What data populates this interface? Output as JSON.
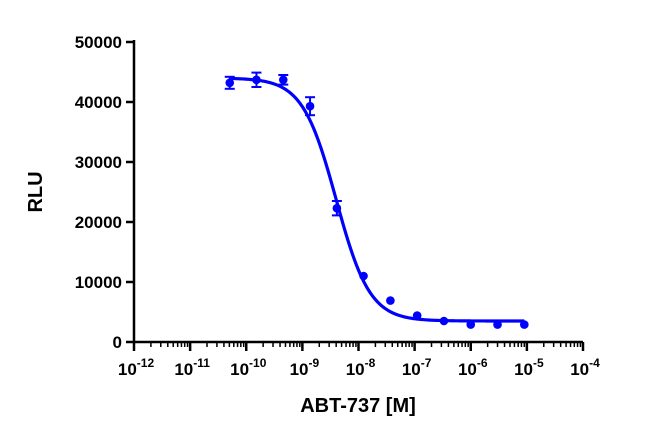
{
  "chart_data": {
    "type": "scatter",
    "title": "",
    "xlabel": "ABT-737 [M]",
    "ylabel": "RLU",
    "x_scale": "log",
    "xlim": [
      1e-12,
      0.0001
    ],
    "ylim": [
      0,
      50000
    ],
    "grid": false,
    "x_ticks": [
      {
        "value": 1e-12,
        "base": "10",
        "exp": "-12"
      },
      {
        "value": 1e-11,
        "base": "10",
        "exp": "-11"
      },
      {
        "value": 1e-10,
        "base": "10",
        "exp": "-10"
      },
      {
        "value": 1e-09,
        "base": "10",
        "exp": "-9"
      },
      {
        "value": 1e-08,
        "base": "10",
        "exp": "-8"
      },
      {
        "value": 1e-07,
        "base": "10",
        "exp": "-7"
      },
      {
        "value": 1e-06,
        "base": "10",
        "exp": "-6"
      },
      {
        "value": 1e-05,
        "base": "10",
        "exp": "-5"
      },
      {
        "value": 0.0001,
        "base": "10",
        "exp": "-4"
      }
    ],
    "y_ticks": [
      {
        "value": 0,
        "label": "0"
      },
      {
        "value": 10000,
        "label": "10000"
      },
      {
        "value": 20000,
        "label": "20000"
      },
      {
        "value": 30000,
        "label": "30000"
      },
      {
        "value": 40000,
        "label": "40000"
      },
      {
        "value": 50000,
        "label": "50000"
      }
    ],
    "series": [
      {
        "color": "#0000ff",
        "points": [
          {
            "x": 5.08e-11,
            "y": 43200,
            "err": 1000
          },
          {
            "x": 1.52e-10,
            "y": 43700,
            "err": 1200
          },
          {
            "x": 4.57e-10,
            "y": 43700,
            "err": 800
          },
          {
            "x": 1.37e-09,
            "y": 39300,
            "err": 1500
          },
          {
            "x": 4.12e-09,
            "y": 22300,
            "err": 1200
          },
          {
            "x": 1.23e-08,
            "y": 11000,
            "err": 0
          },
          {
            "x": 3.7e-08,
            "y": 6900,
            "err": 0
          },
          {
            "x": 1.11e-07,
            "y": 4400,
            "err": 0
          },
          {
            "x": 3.33e-07,
            "y": 3500,
            "err": 0
          },
          {
            "x": 1e-06,
            "y": 2900,
            "err": 0
          },
          {
            "x": 3e-06,
            "y": 2900,
            "err": 0
          },
          {
            "x": 9e-06,
            "y": 2900,
            "err": 0
          }
        ],
        "fit": {
          "model": "four-parameter logistic",
          "top": 44000,
          "bottom": 3500,
          "ec50": 4e-09,
          "hill": 1.45,
          "x_range": [
            5.08e-11,
            9e-06
          ]
        }
      }
    ]
  }
}
